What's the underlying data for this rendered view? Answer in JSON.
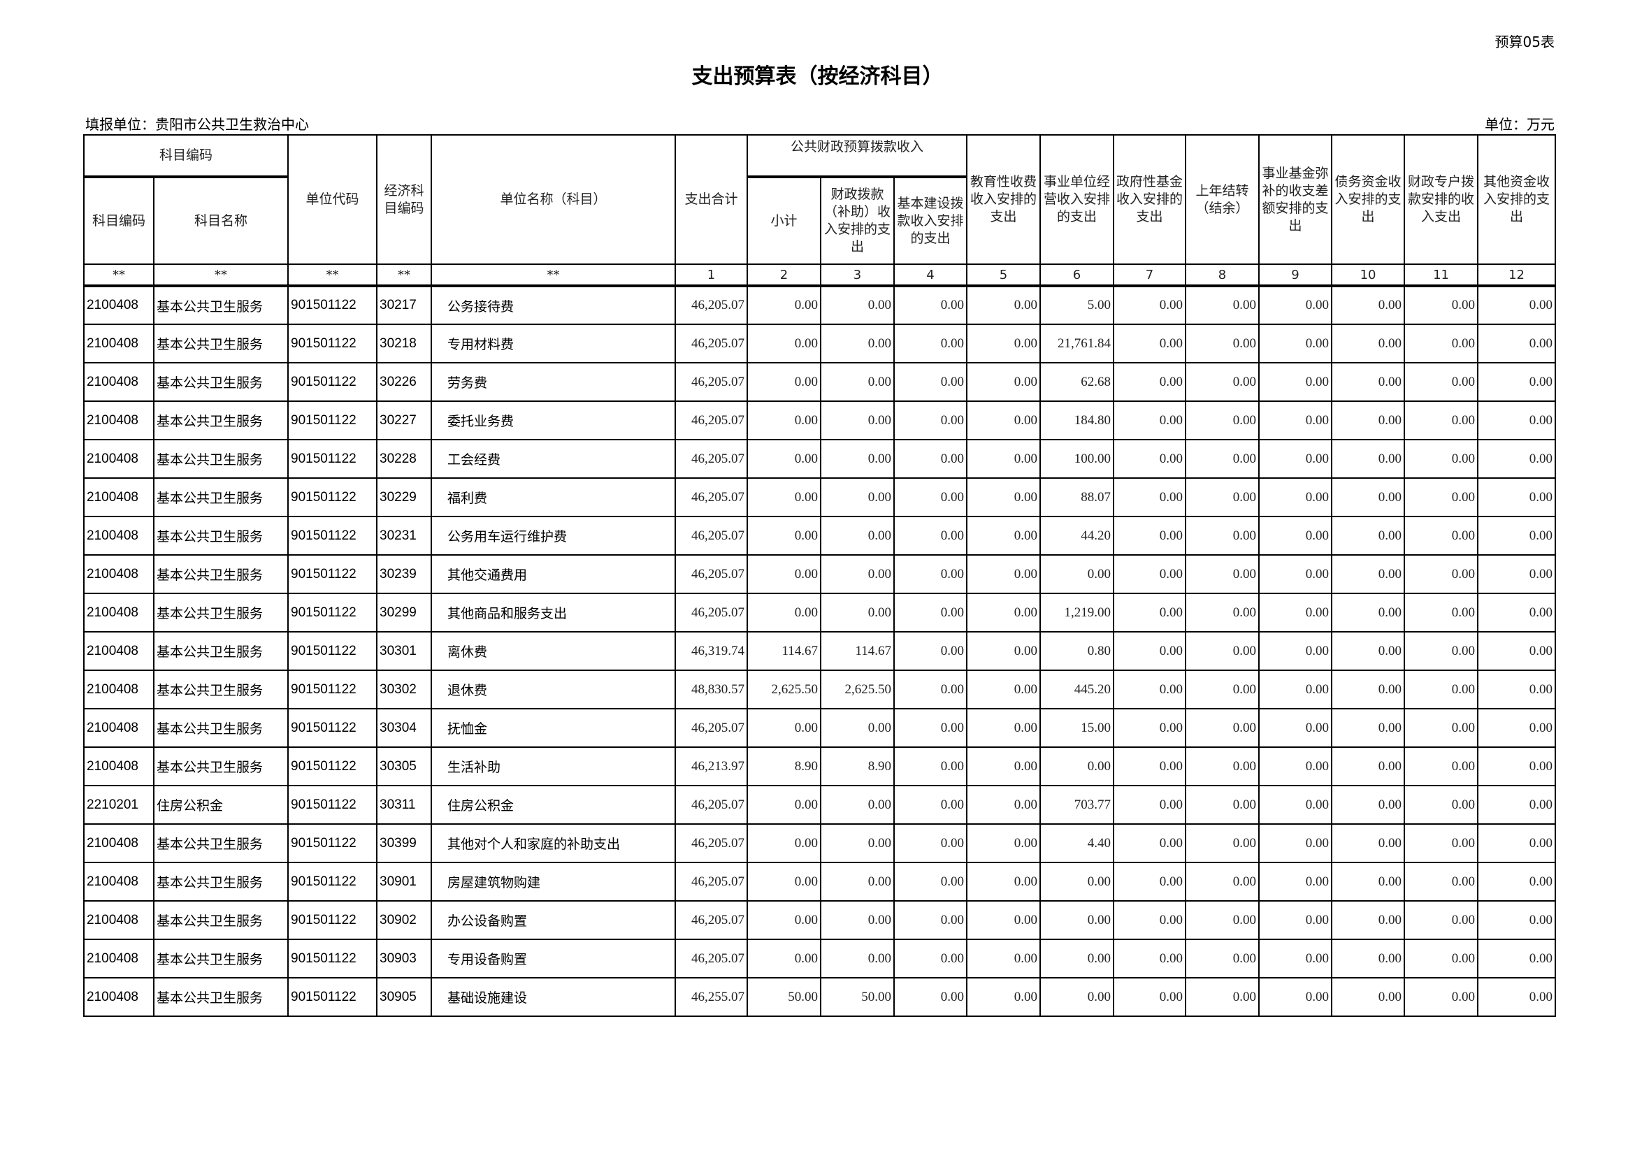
{
  "form_no": "预算05表",
  "title": "支出预算表（按经济科目）",
  "filler": "填报单位：贵阳市公共卫生救治中心",
  "unit": "单位：万元",
  "headers": {
    "subject_code_group": "科目编码",
    "subject_code": "科目编码",
    "subject_name": "科目名称",
    "unit_code": "单位代码",
    "econ_code": "经济科目编码",
    "unit_name": "单位名称（科目）",
    "total": "支出合计",
    "public_finance_group": "公共财政预算拨款收入",
    "subtotal": "小计",
    "fiscal_appropriation": "财政拨款（补助）收入安排的支出",
    "capital_construction": "基本建设拨款收入安排的支出",
    "education_fee": "教育性收费收入安排的支出",
    "business_operation": "事业单位经营收入安排的支出",
    "gov_fund": "政府性基金收入安排的支出",
    "carryover": "上年结转（结余）",
    "business_fund": "事业基金弥补的收支差额安排的支出",
    "debt_fund": "债务资金收入安排的支出",
    "special_account": "财政专户拨款安排的收入支出",
    "other_fund": "其他资金收入安排的支出"
  },
  "index_row": [
    "**",
    "**",
    "**",
    "**",
    "**",
    "1",
    "2",
    "3",
    "4",
    "5",
    "6",
    "7",
    "8",
    "9",
    "10",
    "11",
    "12"
  ],
  "rows": [
    {
      "code": "2100408",
      "name": "基本公共卫生服务",
      "unit_code": "901501122",
      "econ_code": "30217",
      "econ_name": "公务接待费",
      "values": [
        "46,205.07",
        "0.00",
        "0.00",
        "0.00",
        "0.00",
        "5.00",
        "0.00",
        "0.00",
        "0.00",
        "0.00",
        "0.00",
        "0.00"
      ]
    },
    {
      "code": "2100408",
      "name": "基本公共卫生服务",
      "unit_code": "901501122",
      "econ_code": "30218",
      "econ_name": "专用材料费",
      "values": [
        "46,205.07",
        "0.00",
        "0.00",
        "0.00",
        "0.00",
        "21,761.84",
        "0.00",
        "0.00",
        "0.00",
        "0.00",
        "0.00",
        "0.00"
      ]
    },
    {
      "code": "2100408",
      "name": "基本公共卫生服务",
      "unit_code": "901501122",
      "econ_code": "30226",
      "econ_name": "劳务费",
      "values": [
        "46,205.07",
        "0.00",
        "0.00",
        "0.00",
        "0.00",
        "62.68",
        "0.00",
        "0.00",
        "0.00",
        "0.00",
        "0.00",
        "0.00"
      ]
    },
    {
      "code": "2100408",
      "name": "基本公共卫生服务",
      "unit_code": "901501122",
      "econ_code": "30227",
      "econ_name": "委托业务费",
      "values": [
        "46,205.07",
        "0.00",
        "0.00",
        "0.00",
        "0.00",
        "184.80",
        "0.00",
        "0.00",
        "0.00",
        "0.00",
        "0.00",
        "0.00"
      ]
    },
    {
      "code": "2100408",
      "name": "基本公共卫生服务",
      "unit_code": "901501122",
      "econ_code": "30228",
      "econ_name": "工会经费",
      "values": [
        "46,205.07",
        "0.00",
        "0.00",
        "0.00",
        "0.00",
        "100.00",
        "0.00",
        "0.00",
        "0.00",
        "0.00",
        "0.00",
        "0.00"
      ]
    },
    {
      "code": "2100408",
      "name": "基本公共卫生服务",
      "unit_code": "901501122",
      "econ_code": "30229",
      "econ_name": "福利费",
      "values": [
        "46,205.07",
        "0.00",
        "0.00",
        "0.00",
        "0.00",
        "88.07",
        "0.00",
        "0.00",
        "0.00",
        "0.00",
        "0.00",
        "0.00"
      ]
    },
    {
      "code": "2100408",
      "name": "基本公共卫生服务",
      "unit_code": "901501122",
      "econ_code": "30231",
      "econ_name": "公务用车运行维护费",
      "values": [
        "46,205.07",
        "0.00",
        "0.00",
        "0.00",
        "0.00",
        "44.20",
        "0.00",
        "0.00",
        "0.00",
        "0.00",
        "0.00",
        "0.00"
      ]
    },
    {
      "code": "2100408",
      "name": "基本公共卫生服务",
      "unit_code": "901501122",
      "econ_code": "30239",
      "econ_name": "其他交通费用",
      "values": [
        "46,205.07",
        "0.00",
        "0.00",
        "0.00",
        "0.00",
        "0.00",
        "0.00",
        "0.00",
        "0.00",
        "0.00",
        "0.00",
        "0.00"
      ]
    },
    {
      "code": "2100408",
      "name": "基本公共卫生服务",
      "unit_code": "901501122",
      "econ_code": "30299",
      "econ_name": "其他商品和服务支出",
      "values": [
        "46,205.07",
        "0.00",
        "0.00",
        "0.00",
        "0.00",
        "1,219.00",
        "0.00",
        "0.00",
        "0.00",
        "0.00",
        "0.00",
        "0.00"
      ]
    },
    {
      "code": "2100408",
      "name": "基本公共卫生服务",
      "unit_code": "901501122",
      "econ_code": "30301",
      "econ_name": "离休费",
      "values": [
        "46,319.74",
        "114.67",
        "114.67",
        "0.00",
        "0.00",
        "0.80",
        "0.00",
        "0.00",
        "0.00",
        "0.00",
        "0.00",
        "0.00"
      ]
    },
    {
      "code": "2100408",
      "name": "基本公共卫生服务",
      "unit_code": "901501122",
      "econ_code": "30302",
      "econ_name": "退休费",
      "values": [
        "48,830.57",
        "2,625.50",
        "2,625.50",
        "0.00",
        "0.00",
        "445.20",
        "0.00",
        "0.00",
        "0.00",
        "0.00",
        "0.00",
        "0.00"
      ]
    },
    {
      "code": "2100408",
      "name": "基本公共卫生服务",
      "unit_code": "901501122",
      "econ_code": "30304",
      "econ_name": "抚恤金",
      "values": [
        "46,205.07",
        "0.00",
        "0.00",
        "0.00",
        "0.00",
        "15.00",
        "0.00",
        "0.00",
        "0.00",
        "0.00",
        "0.00",
        "0.00"
      ]
    },
    {
      "code": "2100408",
      "name": "基本公共卫生服务",
      "unit_code": "901501122",
      "econ_code": "30305",
      "econ_name": "生活补助",
      "values": [
        "46,213.97",
        "8.90",
        "8.90",
        "0.00",
        "0.00",
        "0.00",
        "0.00",
        "0.00",
        "0.00",
        "0.00",
        "0.00",
        "0.00"
      ]
    },
    {
      "code": "2210201",
      "name": "住房公积金",
      "unit_code": "901501122",
      "econ_code": "30311",
      "econ_name": "住房公积金",
      "values": [
        "46,205.07",
        "0.00",
        "0.00",
        "0.00",
        "0.00",
        "703.77",
        "0.00",
        "0.00",
        "0.00",
        "0.00",
        "0.00",
        "0.00"
      ]
    },
    {
      "code": "2100408",
      "name": "基本公共卫生服务",
      "unit_code": "901501122",
      "econ_code": "30399",
      "econ_name": "其他对个人和家庭的补助支出",
      "values": [
        "46,205.07",
        "0.00",
        "0.00",
        "0.00",
        "0.00",
        "4.40",
        "0.00",
        "0.00",
        "0.00",
        "0.00",
        "0.00",
        "0.00"
      ]
    },
    {
      "code": "2100408",
      "name": "基本公共卫生服务",
      "unit_code": "901501122",
      "econ_code": "30901",
      "econ_name": "房屋建筑物购建",
      "values": [
        "46,205.07",
        "0.00",
        "0.00",
        "0.00",
        "0.00",
        "0.00",
        "0.00",
        "0.00",
        "0.00",
        "0.00",
        "0.00",
        "0.00"
      ]
    },
    {
      "code": "2100408",
      "name": "基本公共卫生服务",
      "unit_code": "901501122",
      "econ_code": "30902",
      "econ_name": "办公设备购置",
      "values": [
        "46,205.07",
        "0.00",
        "0.00",
        "0.00",
        "0.00",
        "0.00",
        "0.00",
        "0.00",
        "0.00",
        "0.00",
        "0.00",
        "0.00"
      ]
    },
    {
      "code": "2100408",
      "name": "基本公共卫生服务",
      "unit_code": "901501122",
      "econ_code": "30903",
      "econ_name": "专用设备购置",
      "values": [
        "46,205.07",
        "0.00",
        "0.00",
        "0.00",
        "0.00",
        "0.00",
        "0.00",
        "0.00",
        "0.00",
        "0.00",
        "0.00",
        "0.00"
      ]
    },
    {
      "code": "2100408",
      "name": "基本公共卫生服务",
      "unit_code": "901501122",
      "econ_code": "30905",
      "econ_name": "基础设施建设",
      "values": [
        "46,255.07",
        "50.00",
        "50.00",
        "0.00",
        "0.00",
        "0.00",
        "0.00",
        "0.00",
        "0.00",
        "0.00",
        "0.00",
        "0.00"
      ]
    }
  ]
}
